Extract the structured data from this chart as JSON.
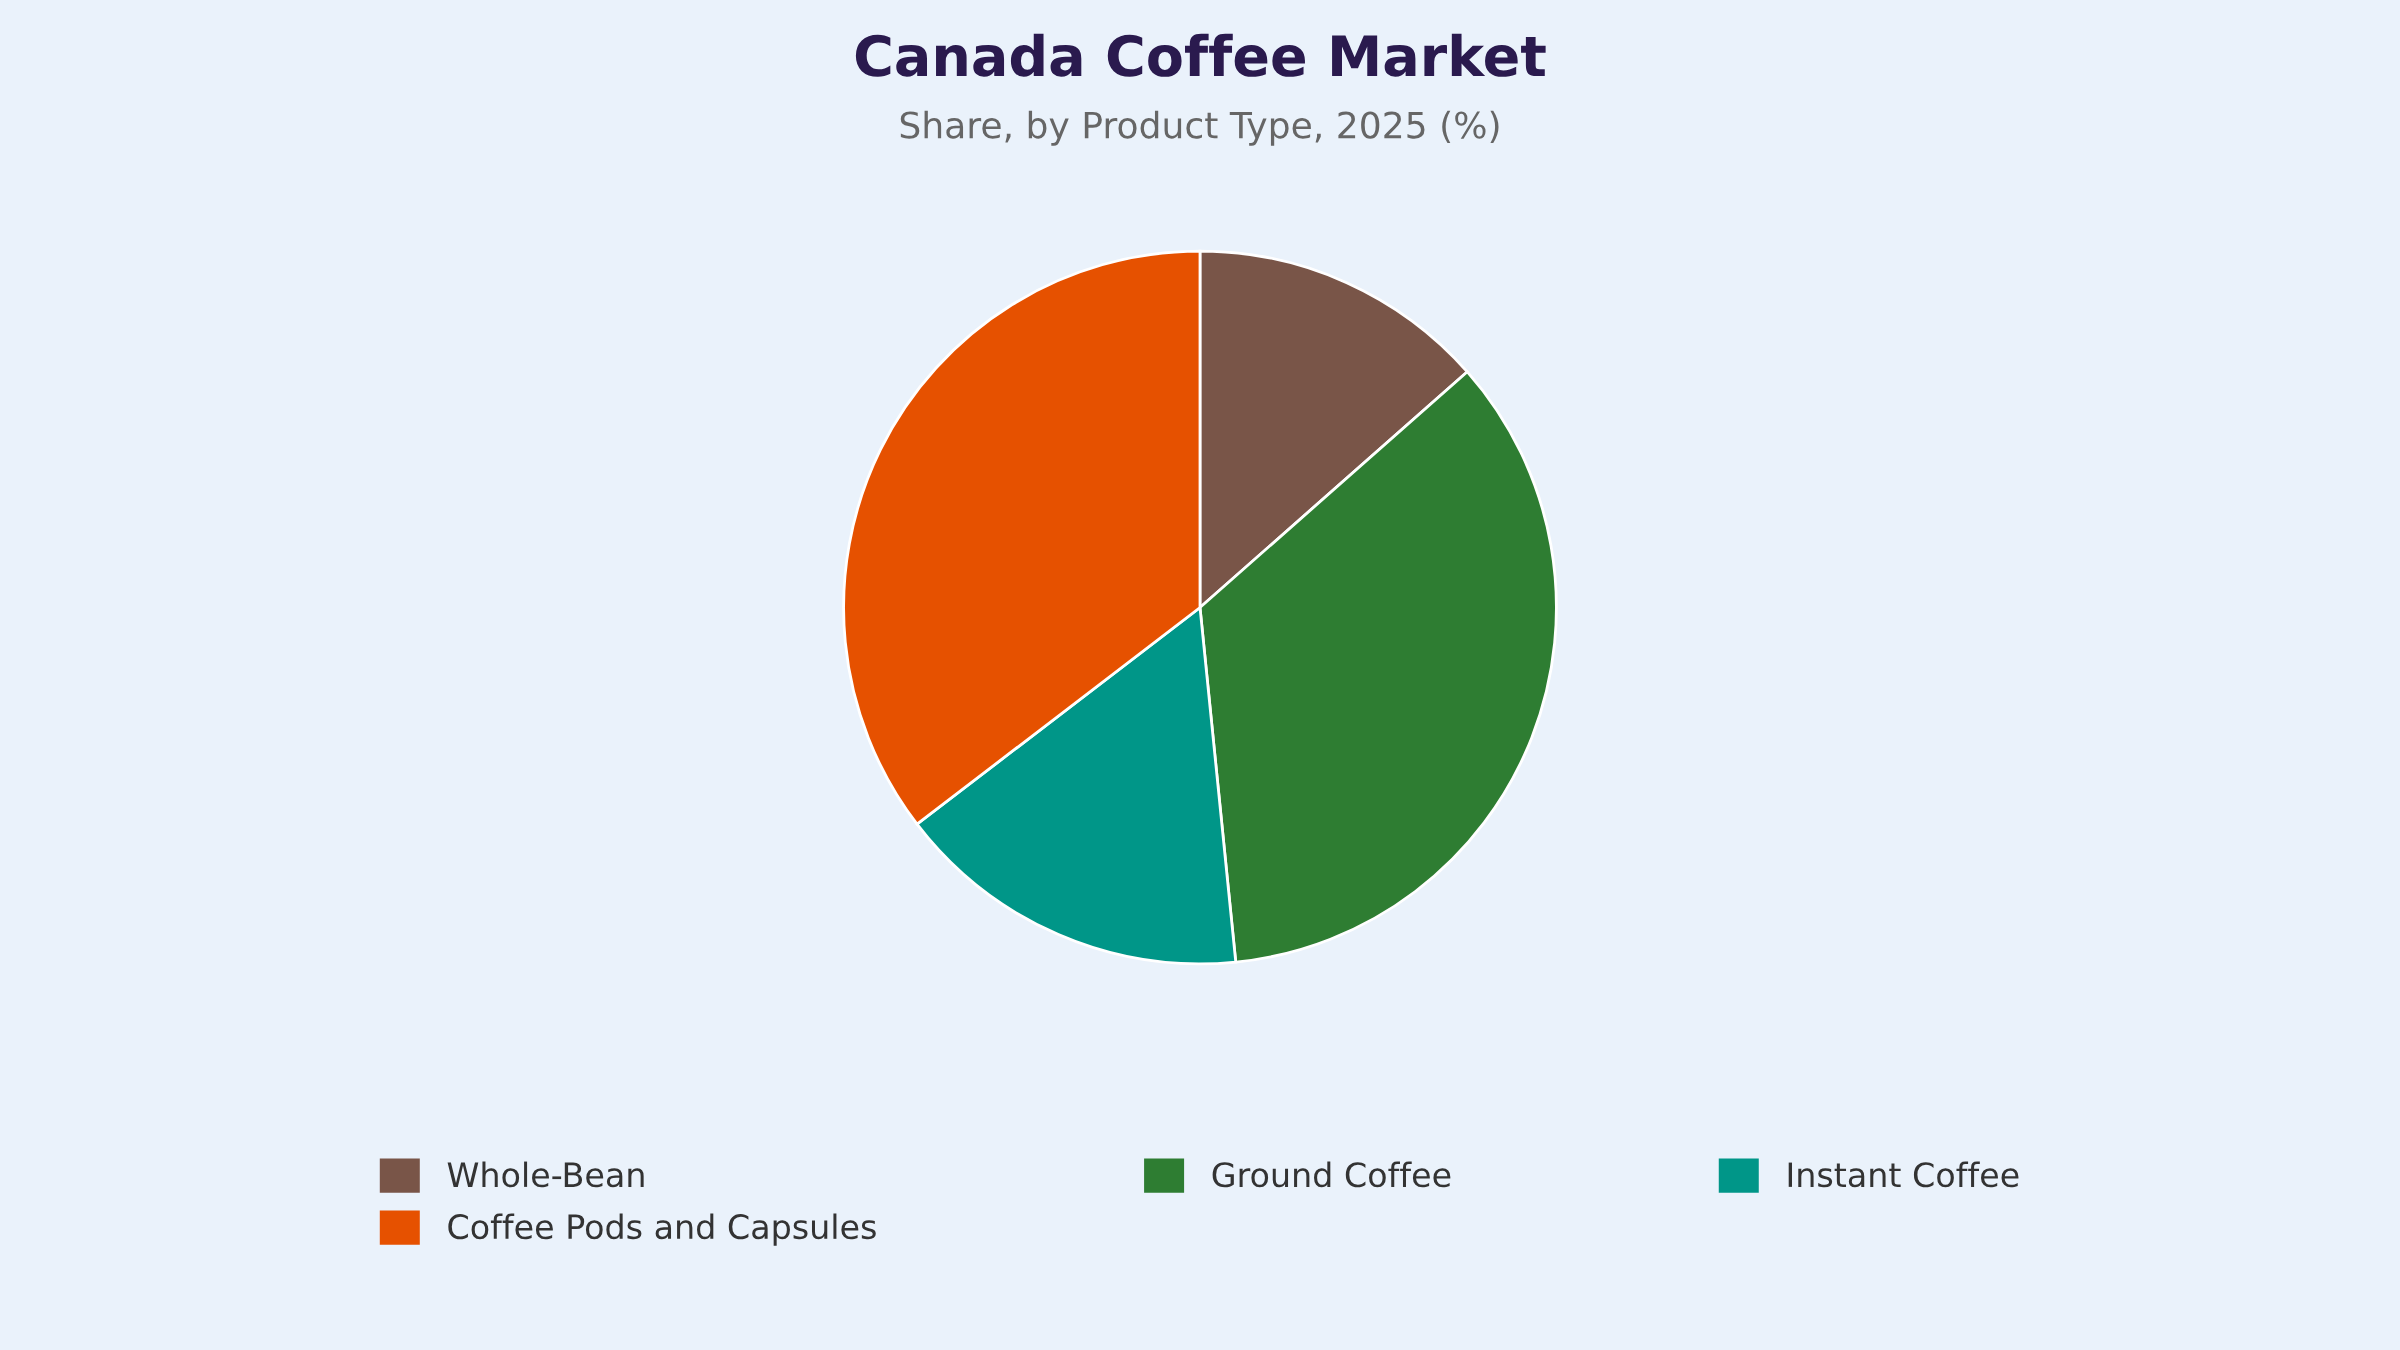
{
  "chart_data": {
    "type": "pie",
    "title": "Canada Coffee Market",
    "subtitle": "Share, by Product Type, 2025 (%)",
    "categories": [
      "Whole-Bean",
      "Ground Coffee",
      "Instant Coffee",
      "Coffee Pods and Capsules"
    ],
    "values": [
      13.5,
      34.9,
      16.2,
      35.4
    ],
    "colors": [
      "#795548",
      "#2e7d32",
      "#009688",
      "#e65100"
    ],
    "legend": "bottom"
  }
}
